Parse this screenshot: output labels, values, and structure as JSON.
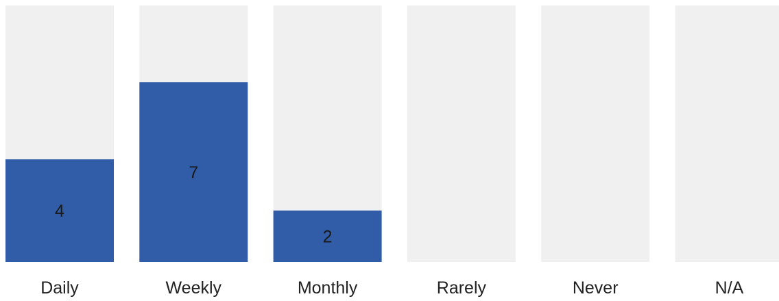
{
  "chart_data": {
    "type": "bar",
    "categories": [
      "Daily",
      "Weekly",
      "Monthly",
      "Rarely",
      "Never",
      "N/A"
    ],
    "values": [
      4,
      7,
      2,
      0,
      0,
      0
    ],
    "data_labels": [
      "4",
      "7",
      "2",
      "",
      "",
      ""
    ],
    "ylim": [
      0,
      7
    ],
    "title": "",
    "xlabel": "",
    "ylabel": "",
    "grid": false,
    "legend": "none",
    "colors": {
      "bar": "#315ca8",
      "track": "#f0f0f0",
      "label_text": "#1a1a1a",
      "category_text": "#222222"
    }
  }
}
